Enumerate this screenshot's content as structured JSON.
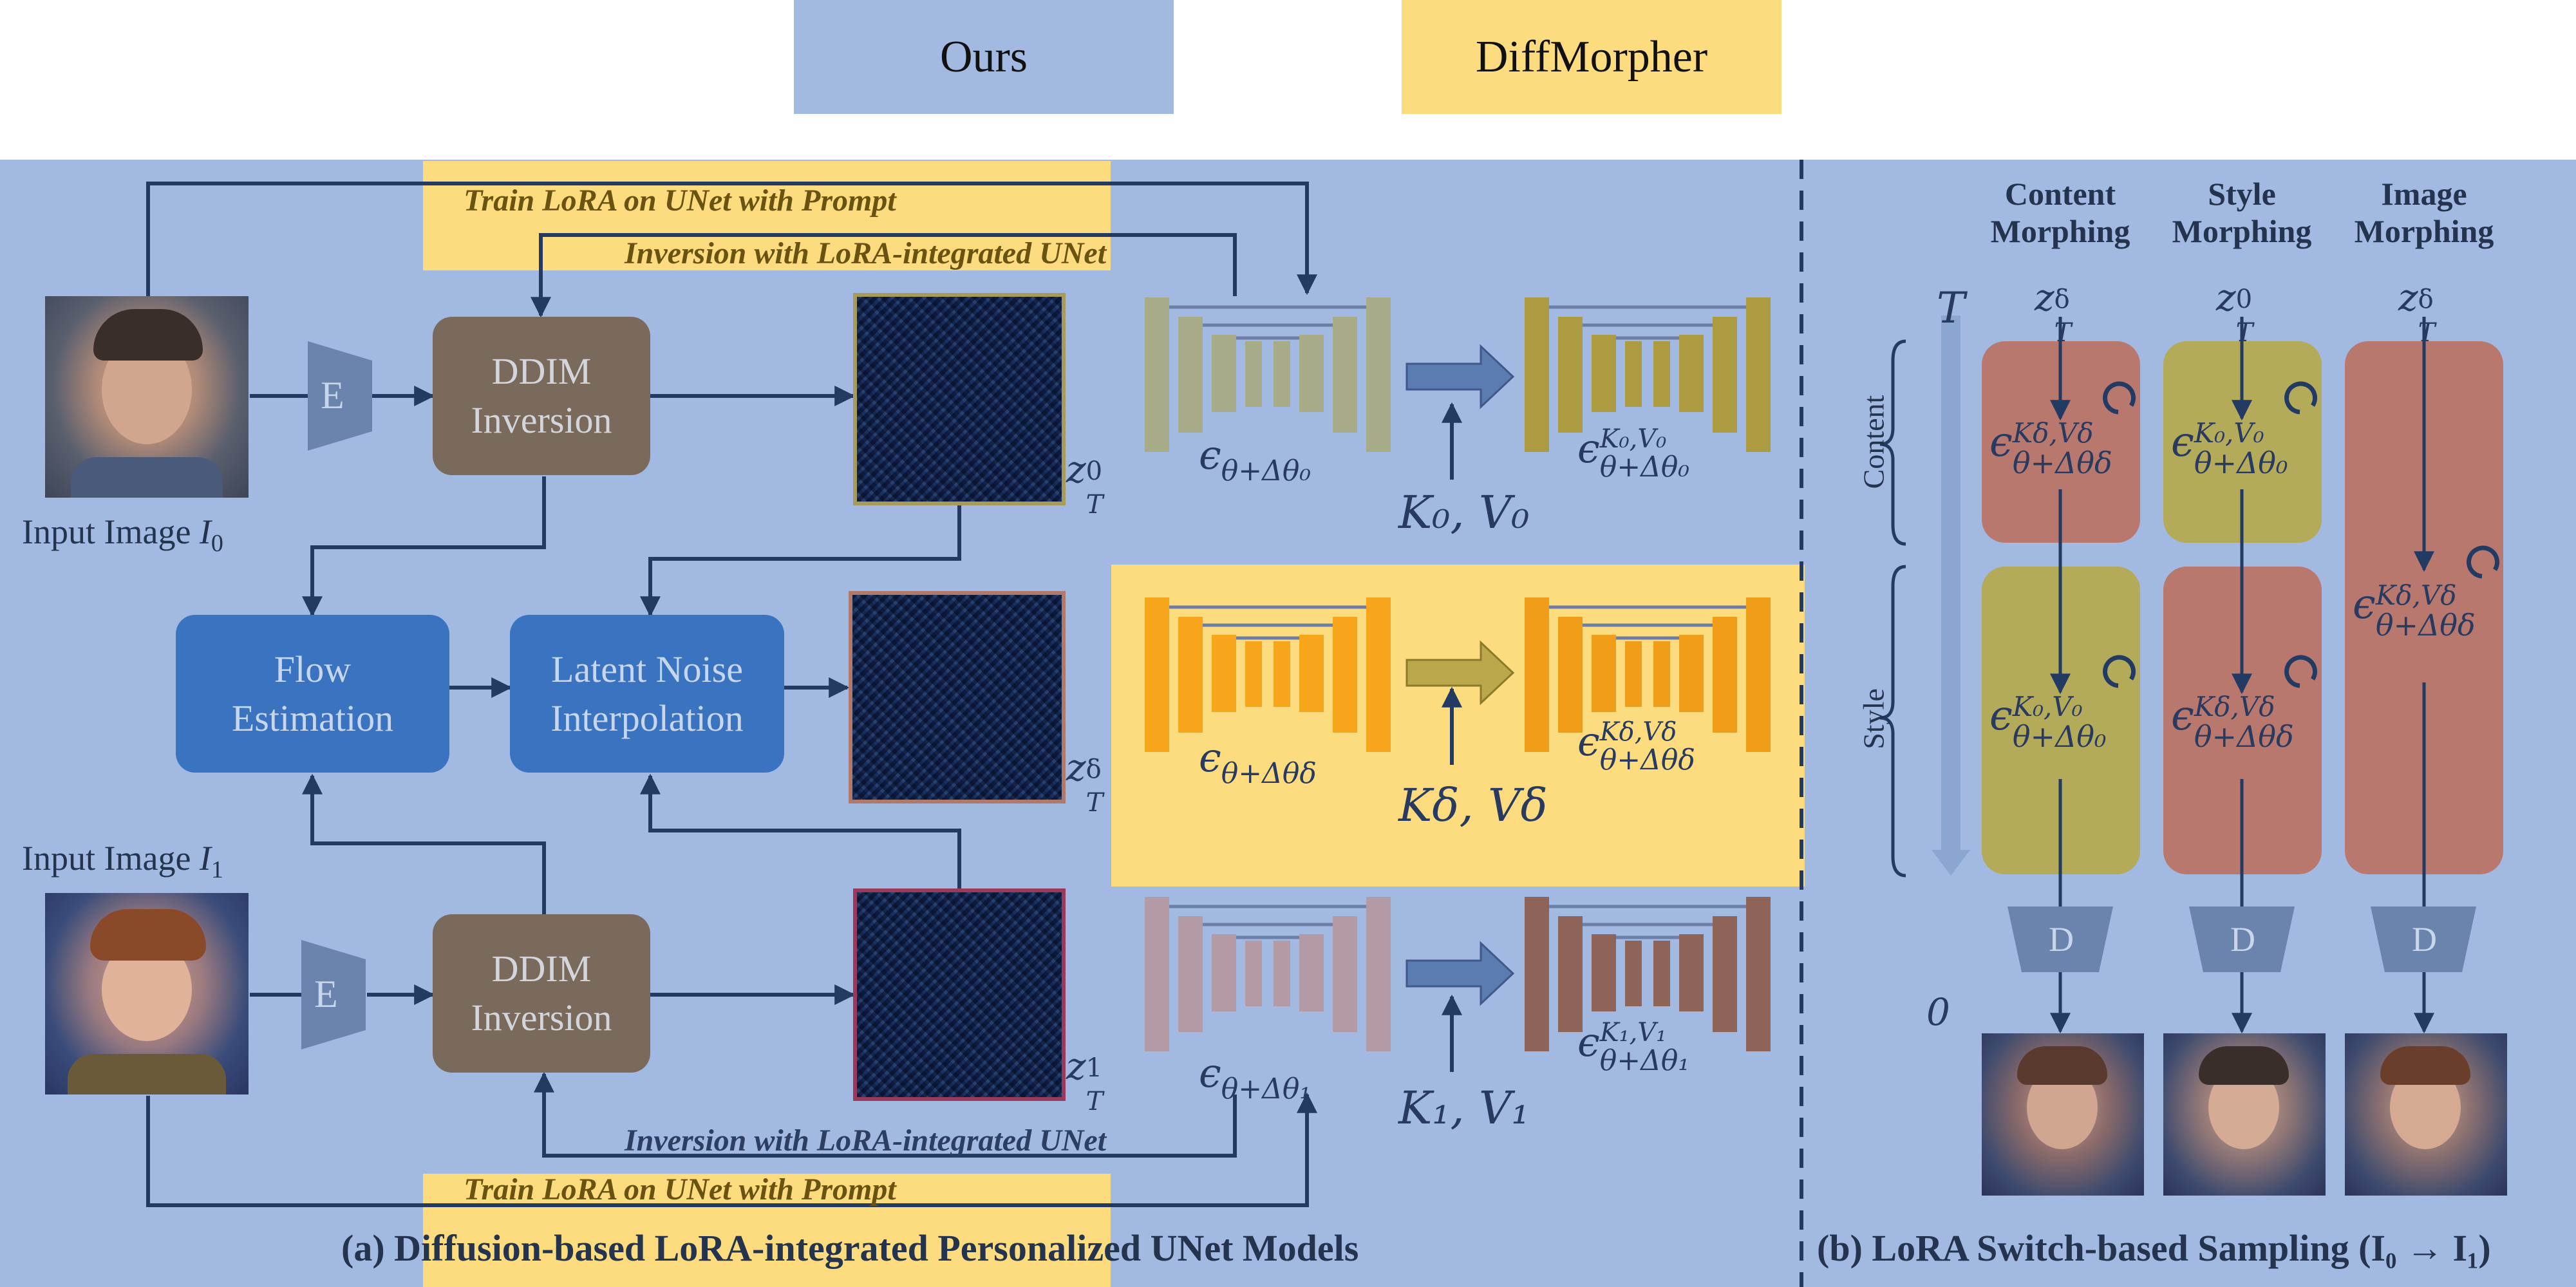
{
  "legend": {
    "ours": "Ours",
    "diffmorpher": "DiffMorpher",
    "ours_color": "#a2b9e1",
    "diffmorpher_color": "#fddc80"
  },
  "left": {
    "train_lora_top": "Train LoRA on UNet with Prompt",
    "inversion_top": "Inversion with LoRA-integrated UNet",
    "inversion_bottom": "Inversion with LoRA-integrated UNet",
    "train_lora_bottom": "Train LoRA on UNet with Prompt",
    "input0": "Input Image",
    "input0_sym": "I",
    "input0_sub": "0",
    "input1": "Input Image",
    "input1_sym": "I",
    "input1_sub": "1",
    "encoder_label": "E",
    "ddim_top": [
      "DDIM",
      "Inversion"
    ],
    "ddim_bottom": [
      "DDIM",
      "Inversion"
    ],
    "flow": [
      "Flow",
      "Estimation"
    ],
    "latent": [
      "Latent Noise",
      "Interpolation"
    ],
    "z_top": {
      "base": "z",
      "sub": "T",
      "sup": "0"
    },
    "z_mid": {
      "base": "z",
      "sub": "T",
      "sup": "δ"
    },
    "z_bot": {
      "base": "z",
      "sub": "T",
      "sup": "1"
    },
    "eps_top_left": "θ+Δθ₀",
    "eps_mid_left": "θ+Δθδ",
    "eps_bot_left": "θ+Δθ₁",
    "eps_top_right_sup": "K₀,V₀",
    "eps_mid_right_sup": "Kδ,Vδ",
    "eps_bot_right_sup": "K₁,V₁",
    "kv_top": "K₀, V₀",
    "kv_mid": "Kδ, Vδ",
    "kv_bot": "K₁, V₁",
    "caption": "(a) Diffusion-based LoRA-integrated Personalized UNet Models"
  },
  "right": {
    "headers": [
      [
        "Content",
        "Morphing"
      ],
      [
        "Style",
        "Morphing"
      ],
      [
        "Image",
        "Morphing"
      ]
    ],
    "z_content": {
      "base": "z",
      "sub": "T",
      "sup": "δ"
    },
    "z_style": {
      "base": "z",
      "sub": "T",
      "sup": "0"
    },
    "z_image": {
      "base": "z",
      "sub": "T",
      "sup": "δ"
    },
    "t_top": "T",
    "t_bottom": "0",
    "content_label": "Content",
    "style_label": "Style",
    "decoder_label": "D",
    "caption": "(b) LoRA Switch-based Sampling (I₀ → I₁)",
    "eps_c1_sup": "Kδ,Vδ",
    "eps_c1_sub": "θ+Δθδ",
    "eps_c2_sup": "K₀,V₀",
    "eps_c2_sub": "θ+Δθ₀",
    "eps_s1_sup": "K₀,V₀",
    "eps_s1_sub": "θ+Δθ₀",
    "eps_s2_sup": "Kδ,Vδ",
    "eps_s2_sub": "θ+Δθδ",
    "eps_i_sup": "Kδ,Vδ",
    "eps_i_sub": "θ+Δθδ"
  },
  "colors": {
    "brown_block": "#b9786e",
    "olive_block": "#b3ab59",
    "arrow": "#233a63"
  }
}
